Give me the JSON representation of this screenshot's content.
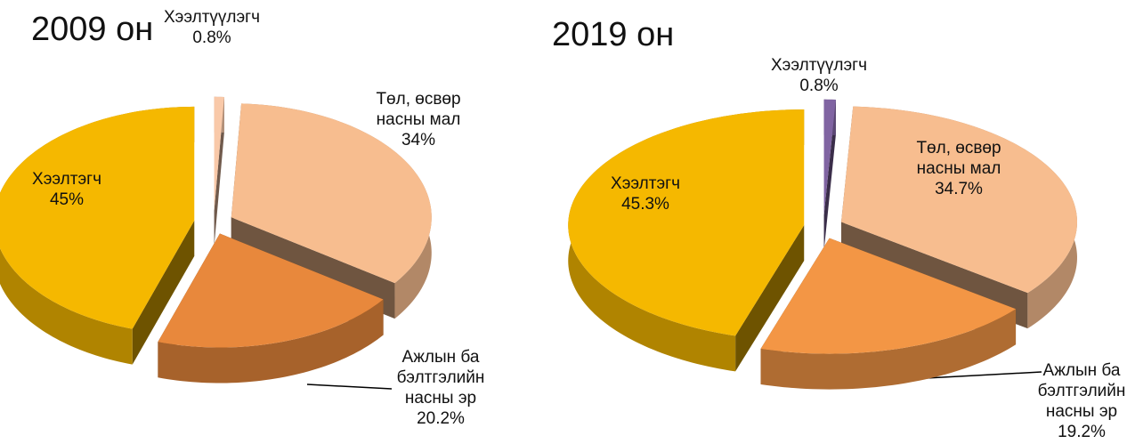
{
  "chart_data": [
    {
      "type": "pie",
      "title": "2009 он",
      "categories": [
        "Хээлтүүлэгч",
        "Төл, өсвөр насны мал",
        "Ажлын ба бэлтгэлийн насны эр",
        "Хээлтэгч"
      ],
      "values": [
        0.8,
        34,
        20.2,
        45
      ],
      "value_labels": [
        "0.8%",
        "34%",
        "20.2%",
        "45%"
      ],
      "colors": [
        "#f9c9a9",
        "#f7bd8f",
        "#e8883c",
        "#f5b800"
      ]
    },
    {
      "type": "pie",
      "title": "2019 он",
      "categories": [
        "Хээлтүүлэгч",
        "Төл, өсвөр насны мал",
        "Ажлын ба бэлтгэлийн насны эр",
        "Хээлтэгч"
      ],
      "values": [
        0.8,
        34.7,
        19.2,
        45.3
      ],
      "value_labels": [
        "0.8%",
        "34.7%",
        "19.2%",
        "45.3%"
      ],
      "colors": [
        "#8064a2",
        "#f7bd8f",
        "#f39645",
        "#f5b800"
      ]
    }
  ]
}
